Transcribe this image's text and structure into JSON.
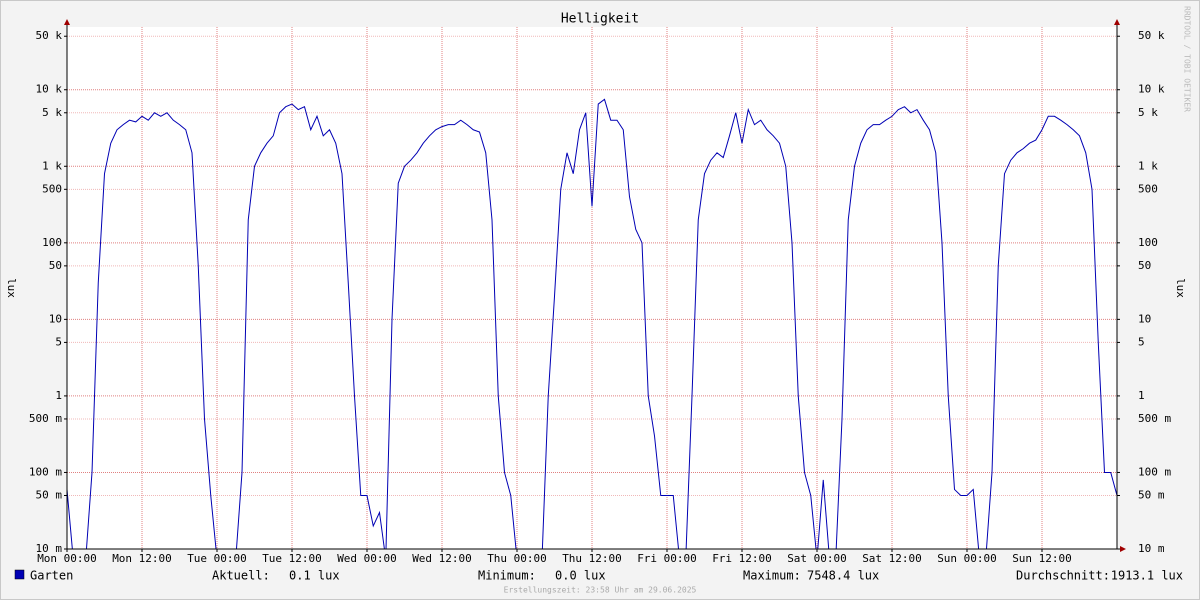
{
  "chart_data": {
    "type": "line",
    "title": "Helligkeit",
    "y_label": "lux",
    "watermark": "RRDTOOL / TOBI OETIKER",
    "footer": "Erstellungszeit: 23:58 Uhr am 29.06.2025",
    "log_scale": true,
    "grid": true,
    "ylim": [
      0.01,
      66000
    ],
    "yticks": [
      {
        "value": 50000,
        "label": "50 k"
      },
      {
        "value": 10000,
        "label": "10 k"
      },
      {
        "value": 5000,
        "label": "5 k"
      },
      {
        "value": 1000,
        "label": "1 k"
      },
      500,
      100,
      50,
      10,
      5,
      1,
      {
        "value": 0.5,
        "label": "500 m"
      },
      {
        "value": 0.1,
        "label": "100 m"
      },
      {
        "value": 0.05,
        "label": "50 m"
      },
      {
        "value": 0.01,
        "label": "10 m"
      }
    ],
    "xlim": [
      0,
      168
    ],
    "xticks": [
      {
        "value": 0,
        "label": "Mon 00:00"
      },
      {
        "value": 12,
        "label": "Mon 12:00"
      },
      {
        "value": 24,
        "label": "Tue 00:00"
      },
      {
        "value": 36,
        "label": "Tue 12:00"
      },
      {
        "value": 48,
        "label": "Wed 00:00"
      },
      {
        "value": 60,
        "label": "Wed 12:00"
      },
      {
        "value": 72,
        "label": "Thu 00:00"
      },
      {
        "value": 84,
        "label": "Thu 12:00"
      },
      {
        "value": 96,
        "label": "Fri 00:00"
      },
      {
        "value": 108,
        "label": "Fri 12:00"
      },
      {
        "value": 120,
        "label": "Sat 00:00"
      },
      {
        "value": 132,
        "label": "Sat 12:00"
      },
      {
        "value": 144,
        "label": "Sun 00:00"
      },
      {
        "value": 156,
        "label": "Sun 12:00"
      }
    ],
    "x": [
      0,
      1,
      2,
      3,
      4,
      5,
      6,
      7,
      8,
      9,
      10,
      11,
      12,
      13,
      14,
      15,
      16,
      17,
      18,
      19,
      20,
      21,
      22,
      23,
      24,
      25,
      26,
      27,
      28,
      29,
      30,
      31,
      32,
      33,
      34,
      35,
      36,
      37,
      38,
      39,
      40,
      41,
      42,
      43,
      44,
      45,
      46,
      47,
      48,
      49,
      50,
      51,
      52,
      53,
      54,
      55,
      56,
      57,
      58,
      59,
      60,
      61,
      62,
      63,
      64,
      65,
      66,
      67,
      68,
      69,
      70,
      71,
      72,
      73,
      74,
      75,
      76,
      77,
      78,
      79,
      80,
      81,
      82,
      83,
      84,
      85,
      86,
      87,
      88,
      89,
      90,
      91,
      92,
      93,
      94,
      95,
      96,
      97,
      98,
      99,
      100,
      101,
      102,
      103,
      104,
      105,
      106,
      107,
      108,
      109,
      110,
      111,
      112,
      113,
      114,
      115,
      116,
      117,
      118,
      119,
      120,
      121,
      122,
      123,
      124,
      125,
      126,
      127,
      128,
      129,
      130,
      131,
      132,
      133,
      134,
      135,
      136,
      137,
      138,
      139,
      140,
      141,
      142,
      143,
      144,
      145,
      146,
      147,
      148,
      149,
      150,
      151,
      152,
      153,
      154,
      155,
      156,
      157,
      158,
      159,
      160,
      161,
      162,
      163,
      164,
      165,
      166,
      167,
      168
    ],
    "series": [
      {
        "name": "Garten",
        "color": "#0000b4",
        "values": [
          0.06,
          0,
          0,
          0,
          0.1,
          30,
          800,
          2000,
          3000,
          3500,
          4000,
          3800,
          4500,
          4000,
          5000,
          4500,
          5000,
          4000,
          3500,
          3000,
          1500,
          50,
          0.5,
          0.05,
          0,
          0,
          0,
          0,
          0.1,
          200,
          1000,
          1500,
          2000,
          2500,
          5000,
          6000,
          6500,
          5500,
          6000,
          3000,
          4500,
          2500,
          3000,
          2000,
          800,
          30,
          1,
          0.05,
          0.05,
          0.02,
          0.03,
          0,
          10,
          600,
          1000,
          1200,
          1500,
          2000,
          2500,
          3000,
          3300,
          3500,
          3500,
          4000,
          3500,
          3000,
          2800,
          1500,
          200,
          1,
          0.1,
          0.05,
          0,
          0,
          0,
          0,
          0,
          1,
          20,
          500,
          1500,
          800,
          3000,
          5000,
          300,
          6500,
          7500,
          4000,
          4000,
          3000,
          400,
          150,
          100,
          1,
          0.3,
          0.05,
          0.05,
          0.05,
          0,
          0,
          1,
          200,
          800,
          1200,
          1500,
          1300,
          2500,
          5000,
          2000,
          5500,
          3500,
          4000,
          3000,
          2500,
          2000,
          1000,
          100,
          1,
          0.1,
          0.05,
          0,
          0.08,
          0,
          0,
          0.5,
          200,
          1000,
          2000,
          3000,
          3500,
          3500,
          4000,
          4500,
          5500,
          6000,
          5000,
          5500,
          4000,
          3000,
          1500,
          100,
          1,
          0.06,
          0.05,
          0.05,
          0.06,
          0,
          0,
          0.1,
          50,
          800,
          1200,
          1500,
          1700,
          2000,
          2200,
          3000,
          4500,
          4500,
          4000,
          3500,
          3000,
          2500,
          1500,
          500,
          5,
          0.1,
          0.1,
          0.05
        ]
      }
    ],
    "stats": [
      {
        "label": "Aktuell:",
        "value": "0.1 lux"
      },
      {
        "label": "Minimum:",
        "value": "0.0 lux"
      },
      {
        "label": "Maximum:",
        "value": "7548.4 lux"
      },
      {
        "label": "Durchschnitt:",
        "value": "1913.1 lux"
      }
    ]
  }
}
